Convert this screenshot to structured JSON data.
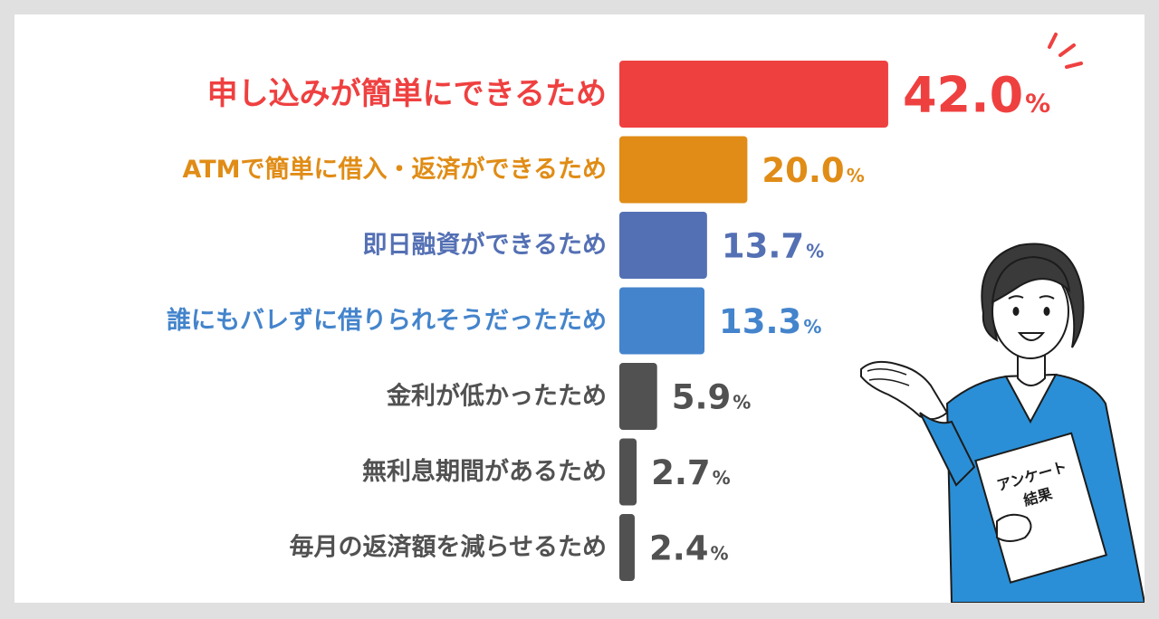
{
  "chart_data": {
    "type": "bar",
    "orientation": "horizontal",
    "categories": [
      "申し込みが簡単にできるため",
      "ATMで簡単に借入・返済ができるため",
      "即日融資ができるため",
      "誰にもバレずに借りられそうだったため",
      "金利が低かったため",
      "無利息期間があるため",
      "毎月の返済額を減らせるため"
    ],
    "values": [
      42.0,
      20.0,
      13.7,
      13.3,
      5.9,
      2.7,
      2.4
    ],
    "value_labels": [
      "42.0",
      "20.0",
      "13.7",
      "13.3",
      "5.9",
      "2.7",
      "2.4"
    ],
    "unit": "%",
    "colors": [
      "#ef4040",
      "#e08c16",
      "#5470b4",
      "#4484cc",
      "#515151",
      "#515151",
      "#515151"
    ],
    "grid": false,
    "legend": "none"
  },
  "illustration": {
    "name": "woman-presenting-survey",
    "clipboard_text_line1": "アンケート",
    "clipboard_text_line2": "結果",
    "jacket_color": "#2a8fd6"
  }
}
